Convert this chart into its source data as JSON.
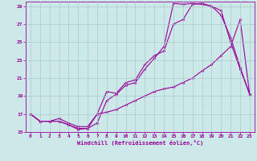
{
  "xlabel": "Windchill (Refroidissement éolien,°C)",
  "ylabel": "",
  "xlim": [
    -0.5,
    23.5
  ],
  "ylim": [
    15,
    29.5
  ],
  "xticks": [
    0,
    1,
    2,
    3,
    4,
    5,
    6,
    7,
    8,
    9,
    10,
    11,
    12,
    13,
    14,
    15,
    16,
    17,
    18,
    19,
    20,
    21,
    22,
    23
  ],
  "yticks": [
    15,
    17,
    19,
    21,
    23,
    25,
    27,
    29
  ],
  "line_color": "#990099",
  "bg_color": "#cce8e8",
  "grid_color": "#aacaca",
  "line1_x": [
    0,
    1,
    2,
    3,
    4,
    5,
    6,
    7,
    8,
    9,
    10,
    11,
    12,
    13,
    14,
    15,
    16,
    17,
    18,
    19,
    20,
    21,
    22,
    23
  ],
  "line1_y": [
    17.0,
    16.2,
    16.2,
    16.2,
    15.8,
    15.3,
    15.4,
    17.0,
    19.5,
    19.3,
    20.5,
    20.8,
    22.5,
    23.5,
    24.0,
    27.0,
    27.5,
    29.2,
    29.3,
    29.0,
    28.0,
    25.5,
    22.2,
    19.2
  ],
  "line2_x": [
    0,
    1,
    2,
    3,
    4,
    5,
    6,
    7,
    8,
    9,
    10,
    11,
    12,
    13,
    14,
    15,
    16,
    17,
    18,
    19,
    20,
    21,
    22,
    23
  ],
  "line2_y": [
    17.0,
    16.2,
    16.2,
    16.2,
    15.8,
    15.4,
    15.4,
    16.0,
    18.5,
    19.2,
    20.2,
    20.5,
    22.0,
    23.2,
    24.5,
    29.3,
    29.2,
    29.3,
    29.2,
    29.0,
    28.5,
    25.0,
    22.0,
    19.2
  ],
  "line3_x": [
    0,
    1,
    2,
    3,
    4,
    5,
    6,
    7,
    8,
    9,
    10,
    11,
    12,
    13,
    14,
    15,
    16,
    17,
    18,
    19,
    20,
    21,
    22,
    23
  ],
  "line3_y": [
    17.0,
    16.2,
    16.2,
    16.5,
    16.0,
    15.6,
    15.6,
    17.0,
    17.2,
    17.5,
    18.0,
    18.5,
    19.0,
    19.5,
    19.8,
    20.0,
    20.5,
    21.0,
    21.8,
    22.5,
    23.5,
    24.5,
    27.5,
    19.2
  ],
  "marker": "D",
  "markersize": 1.5,
  "linewidth": 0.8,
  "tick_fontsize": 4.5,
  "xlabel_fontsize": 5.0
}
